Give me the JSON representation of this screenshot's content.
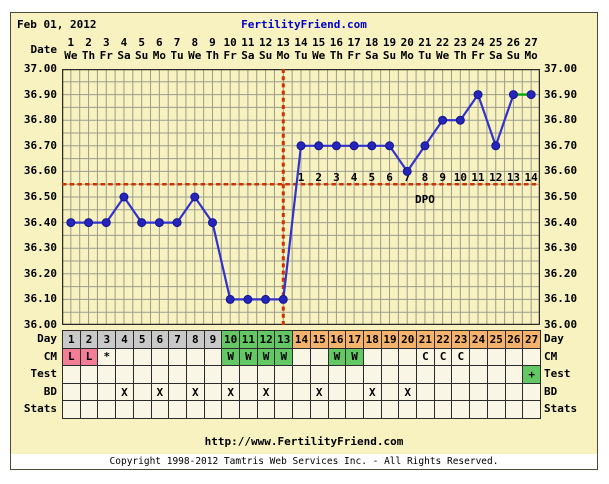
{
  "header": {
    "date": "Feb 01, 2012",
    "title": "FertilityFriend.com"
  },
  "labels": {
    "date_row": "Date",
    "dpo": "DPO"
  },
  "colors": {
    "page_bg": "#FFFFFF",
    "chart_bg": "#F7F2C0",
    "grid": "#9C9C8C",
    "plot_border": "#2B2B2B",
    "line_blue": "#3232CC",
    "marker_blue": "#2525BB",
    "marker_edge": "#15158F",
    "signal_red": "#CC3300",
    "highlight_green_line": "#00AA00",
    "title_blue": "#0000CC",
    "cell_ivory": "#FAF6E6",
    "cell_gray": "#C9C9C9",
    "cell_green": "#63C763",
    "cell_orange": "#F5B26B",
    "cell_pink": "#F27D96",
    "text": "#000000"
  },
  "chart_data": {
    "type": "line",
    "x_label": "Date",
    "x_days": [
      1,
      2,
      3,
      4,
      5,
      6,
      7,
      8,
      9,
      10,
      11,
      12,
      13,
      14,
      15,
      16,
      17,
      18,
      19,
      20,
      21,
      22,
      23,
      24,
      25,
      26,
      27
    ],
    "weekdays": [
      "We",
      "Th",
      "Fr",
      "Sa",
      "Su",
      "Mo",
      "Tu",
      "We",
      "Th",
      "Fr",
      "Sa",
      "Su",
      "Mo",
      "Tu",
      "We",
      "Th",
      "Fr",
      "Sa",
      "Su",
      "Mo",
      "Tu",
      "We",
      "Th",
      "Fr",
      "Sa",
      "Su",
      "Mo"
    ],
    "series": [
      {
        "name": "basal-body-temperature",
        "values": [
          36.4,
          36.4,
          36.4,
          36.5,
          36.4,
          36.4,
          36.4,
          36.5,
          36.4,
          36.1,
          36.1,
          36.1,
          36.1,
          36.7,
          36.7,
          36.7,
          36.7,
          36.7,
          36.7,
          36.6,
          36.7,
          36.8,
          36.8,
          36.9,
          36.7,
          36.9,
          36.9
        ]
      }
    ],
    "ylim": [
      36.0,
      37.0
    ],
    "y_ticks": [
      "37.00",
      "36.90",
      "36.80",
      "36.70",
      "36.60",
      "36.50",
      "36.40",
      "36.30",
      "36.20",
      "36.10",
      "36.00"
    ],
    "grid": true,
    "coverline": 36.55,
    "ovulation_day": 13,
    "dpo_start_day": 14,
    "dpo_labels": [
      "1",
      "2",
      "3",
      "4",
      "5",
      "6",
      "7",
      "8",
      "9",
      "10",
      "11",
      "12",
      "13",
      "14"
    ],
    "dpo_text": "DPO",
    "highlight_segment": {
      "from_day": 26,
      "to_day": 27
    }
  },
  "table": {
    "row_labels": [
      "Day",
      "CM",
      "Test",
      "BD",
      "Stats"
    ],
    "day": {
      "values": [
        "1",
        "2",
        "3",
        "4",
        "5",
        "6",
        "7",
        "8",
        "9",
        "10",
        "11",
        "12",
        "13",
        "14",
        "15",
        "16",
        "17",
        "18",
        "19",
        "20",
        "21",
        "22",
        "23",
        "24",
        "25",
        "26",
        "27"
      ],
      "bg": [
        "gray",
        "gray",
        "gray",
        "gray",
        "gray",
        "gray",
        "gray",
        "gray",
        "gray",
        "green",
        "green",
        "green",
        "green",
        "orange",
        "orange",
        "orange",
        "orange",
        "orange",
        "orange",
        "orange",
        "orange",
        "orange",
        "orange",
        "orange",
        "orange",
        "orange",
        "orange"
      ]
    },
    "cm": {
      "values": [
        "L",
        "L",
        "*",
        "",
        "",
        "",
        "",
        "",
        "",
        "W",
        "W",
        "W",
        "W",
        "",
        "",
        "W",
        "W",
        "",
        "",
        "",
        "C",
        "C",
        "C",
        "",
        "",
        "",
        ""
      ],
      "bg": [
        "pink",
        "pink",
        "ivory",
        "ivory",
        "ivory",
        "ivory",
        "ivory",
        "ivory",
        "ivory",
        "green",
        "green",
        "green",
        "green",
        "ivory",
        "ivory",
        "green",
        "green",
        "ivory",
        "ivory",
        "ivory",
        "ivory",
        "ivory",
        "ivory",
        "ivory",
        "ivory",
        "ivory",
        "ivory"
      ]
    },
    "test": {
      "values": [
        "",
        "",
        "",
        "",
        "",
        "",
        "",
        "",
        "",
        "",
        "",
        "",
        "",
        "",
        "",
        "",
        "",
        "",
        "",
        "",
        "",
        "",
        "",
        "",
        "",
        "",
        "+"
      ],
      "bg": [
        "ivory",
        "ivory",
        "ivory",
        "ivory",
        "ivory",
        "ivory",
        "ivory",
        "ivory",
        "ivory",
        "ivory",
        "ivory",
        "ivory",
        "ivory",
        "ivory",
        "ivory",
        "ivory",
        "ivory",
        "ivory",
        "ivory",
        "ivory",
        "ivory",
        "ivory",
        "ivory",
        "ivory",
        "ivory",
        "ivory",
        "green"
      ]
    },
    "bd": {
      "values": [
        "",
        "",
        "",
        "X",
        "",
        "X",
        "",
        "X",
        "",
        "X",
        "",
        "X",
        "",
        "",
        "X",
        "",
        "",
        "X",
        "",
        "X",
        "",
        "",
        "",
        "",
        "",
        "",
        ""
      ],
      "bg": [
        "ivory",
        "ivory",
        "ivory",
        "ivory",
        "ivory",
        "ivory",
        "ivory",
        "ivory",
        "ivory",
        "ivory",
        "ivory",
        "ivory",
        "ivory",
        "ivory",
        "ivory",
        "ivory",
        "ivory",
        "ivory",
        "ivory",
        "ivory",
        "ivory",
        "ivory",
        "ivory",
        "ivory",
        "ivory",
        "ivory",
        "ivory"
      ]
    },
    "stats": {
      "values": [
        "",
        "",
        "",
        "",
        "",
        "",
        "",
        "",
        "",
        "",
        "",
        "",
        "",
        "",
        "",
        "",
        "",
        "",
        "",
        "",
        "",
        "",
        "",
        "",
        "",
        "",
        ""
      ],
      "bg": [
        "ivory",
        "ivory",
        "ivory",
        "ivory",
        "ivory",
        "ivory",
        "ivory",
        "ivory",
        "ivory",
        "ivory",
        "ivory",
        "ivory",
        "ivory",
        "ivory",
        "ivory",
        "ivory",
        "ivory",
        "ivory",
        "ivory",
        "ivory",
        "ivory",
        "ivory",
        "ivory",
        "ivory",
        "ivory",
        "ivory",
        "ivory"
      ]
    }
  },
  "footer": {
    "url": "http://www.FertilityFriend.com",
    "copyright": "Copyright 1998-2012 Tamtris Web Services Inc. - All Rights Reserved."
  }
}
